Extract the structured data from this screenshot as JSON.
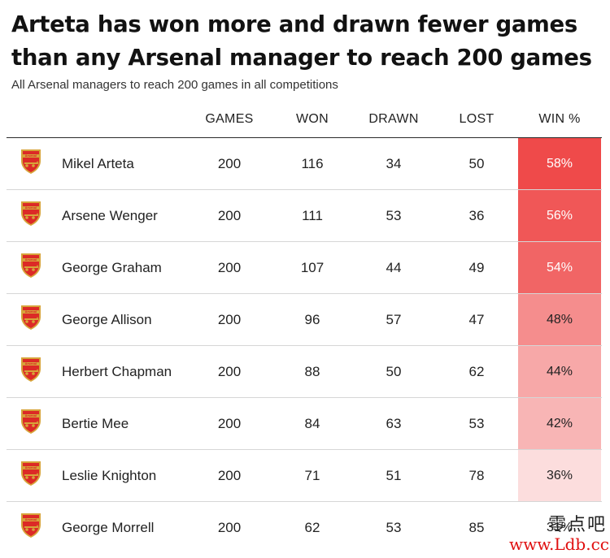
{
  "title": "Arteta has won more and drawn fewer games than any Arsenal manager to reach 200 games",
  "subtitle": "All Arsenal managers to reach 200 games in all competitions",
  "colors": {
    "win_heat_high": "#ef4a4a",
    "win_heat_low": "#ffffff",
    "badge_red": "#dc2a26",
    "badge_gold": "#d7a43a",
    "watermark_red": "#e01010"
  },
  "chart_data": {
    "type": "table",
    "columns": [
      "",
      "GAMES",
      "WON",
      "DRAWN",
      "LOST",
      "WIN %"
    ],
    "rows": [
      {
        "manager": "Mikel Arteta",
        "games": "200",
        "won": "116",
        "drawn": "34",
        "lost": "50",
        "win_pct": "58%",
        "win_value": 58
      },
      {
        "manager": "Arsene Wenger",
        "games": "200",
        "won": "111",
        "drawn": "53",
        "lost": "36",
        "win_pct": "56%",
        "win_value": 56
      },
      {
        "manager": "George Graham",
        "games": "200",
        "won": "107",
        "drawn": "44",
        "lost": "49",
        "win_pct": "54%",
        "win_value": 54
      },
      {
        "manager": "George Allison",
        "games": "200",
        "won": "96",
        "drawn": "57",
        "lost": "47",
        "win_pct": "48%",
        "win_value": 48
      },
      {
        "manager": "Herbert Chapman",
        "games": "200",
        "won": "88",
        "drawn": "50",
        "lost": "62",
        "win_pct": "44%",
        "win_value": 44
      },
      {
        "manager": "Bertie Mee",
        "games": "200",
        "won": "84",
        "drawn": "63",
        "lost": "53",
        "win_pct": "42%",
        "win_value": 42
      },
      {
        "manager": "Leslie Knighton",
        "games": "200",
        "won": "71",
        "drawn": "51",
        "lost": "78",
        "win_pct": "36%",
        "win_value": 36
      },
      {
        "manager": "George Morrell",
        "games": "200",
        "won": "62",
        "drawn": "53",
        "lost": "85",
        "win_pct": "31%",
        "win_value": 31
      }
    ]
  },
  "badge": {
    "icon": "arsenal-crest-icon",
    "text": "Arsenal"
  },
  "watermark": {
    "line1": "零点吧",
    "line2": "www.Ldb.cc"
  }
}
